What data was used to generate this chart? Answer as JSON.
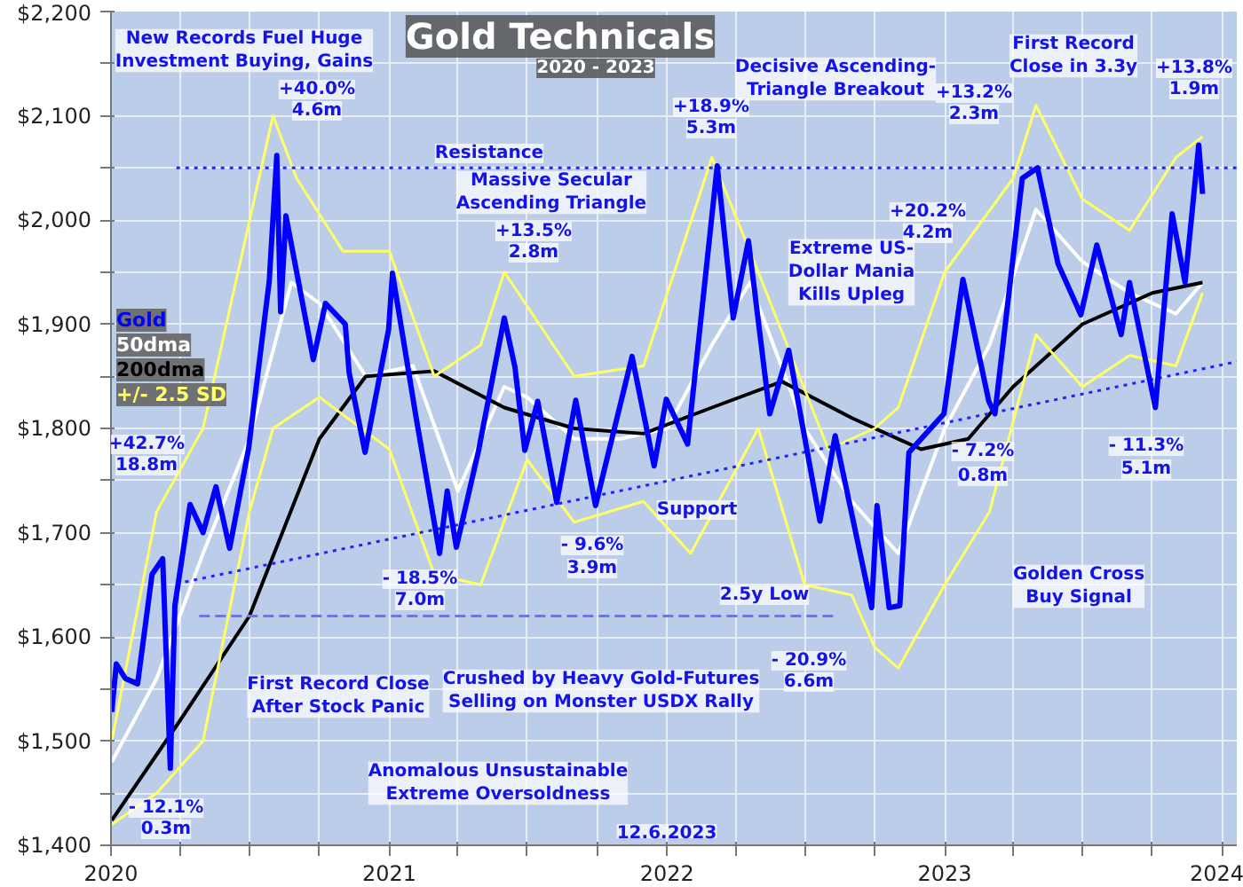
{
  "chart_data": {
    "type": "line",
    "title": "Gold Technicals",
    "subtitle": "2020 - 2023",
    "x": [
      "2020-01-02",
      "2020-01-08",
      "2020-01-20",
      "2020-02-05",
      "2020-02-24",
      "2020-03-09",
      "2020-03-19",
      "2020-03-25",
      "2020-04-14",
      "2020-05-01",
      "2020-05-18",
      "2020-06-05",
      "2020-06-30",
      "2020-07-27",
      "2020-08-06",
      "2020-08-11",
      "2020-08-18",
      "2020-09-23",
      "2020-10-09",
      "2020-11-04",
      "2020-11-09",
      "2020-11-30",
      "2020-12-31",
      "2021-01-05",
      "2021-02-05",
      "2021-03-08",
      "2021-03-18",
      "2021-03-30",
      "2021-04-28",
      "2021-06-01",
      "2021-06-15",
      "2021-06-28",
      "2021-07-15",
      "2021-08-09",
      "2021-09-03",
      "2021-09-29",
      "2021-11-16",
      "2021-12-15",
      "2021-12-31",
      "2022-01-28",
      "2022-03-08",
      "2022-03-29",
      "2022-04-18",
      "2022-05-16",
      "2022-06-10",
      "2022-07-21",
      "2022-08-10",
      "2022-09-27",
      "2022-10-04",
      "2022-10-20",
      "2022-11-03",
      "2022-11-15",
      "2022-12-31",
      "2023-01-25",
      "2023-02-28",
      "2023-03-08",
      "2023-04-13",
      "2023-05-03",
      "2023-05-30",
      "2023-06-29",
      "2023-07-20",
      "2023-08-21",
      "2023-09-01",
      "2023-10-05",
      "2023-10-27",
      "2023-11-13",
      "2023-12-01",
      "2023-12-06"
    ],
    "series": [
      {
        "name": "Gold",
        "color": "#0000ff",
        "values": [
          1528,
          1574,
          1560,
          1555,
          1660,
          1675,
          1474,
          1630,
          1727,
          1700,
          1744,
          1685,
          1781,
          1941,
          2062,
          1912,
          2004,
          1866,
          1920,
          1900,
          1854,
          1777,
          1895,
          1949,
          1811,
          1680,
          1740,
          1686,
          1778,
          1906,
          1859,
          1779,
          1826,
          1729,
          1827,
          1726,
          1869,
          1764,
          1828,
          1785,
          2052,
          1906,
          1980,
          1814,
          1875,
          1711,
          1793,
          1628,
          1726,
          1628,
          1630,
          1777,
          1814,
          1943,
          1826,
          1814,
          2040,
          2050,
          1958,
          1909,
          1976,
          1890,
          1940,
          1820,
          2006,
          1940,
          2072,
          2025
        ]
      },
      {
        "name": "50dma",
        "color": "#ffffff",
        "x": [
          "2020-01-02",
          "2020-03-01",
          "2020-05-01",
          "2020-07-01",
          "2020-08-25",
          "2020-10-01",
          "2020-12-01",
          "2021-02-01",
          "2021-04-01",
          "2021-06-01",
          "2021-07-01",
          "2021-09-01",
          "2021-11-01",
          "2022-01-01",
          "2022-03-01",
          "2022-04-20",
          "2022-07-01",
          "2022-09-01",
          "2022-11-01",
          "2023-01-01",
          "2023-03-01",
          "2023-05-01",
          "2023-07-01",
          "2023-09-01",
          "2023-11-01",
          "2023-12-06"
        ],
        "values": [
          1480,
          1560,
          1680,
          1790,
          1940,
          1920,
          1850,
          1860,
          1740,
          1840,
          1830,
          1790,
          1790,
          1800,
          1880,
          1940,
          1800,
          1730,
          1680,
          1800,
          1880,
          2010,
          1960,
          1930,
          1910,
          1940
        ]
      },
      {
        "name": "200dma",
        "color": "#000000",
        "x": [
          "2020-01-02",
          "2020-04-01",
          "2020-07-01",
          "2020-10-01",
          "2020-12-01",
          "2021-03-01",
          "2021-06-01",
          "2021-09-01",
          "2021-12-01",
          "2022-03-01",
          "2022-06-01",
          "2022-09-01",
          "2022-12-01",
          "2023-02-01",
          "2023-04-01",
          "2023-07-01",
          "2023-10-01",
          "2023-12-06"
        ],
        "values": [
          1424,
          1520,
          1620,
          1790,
          1850,
          1855,
          1820,
          1800,
          1795,
          1820,
          1845,
          1810,
          1780,
          1790,
          1840,
          1900,
          1930,
          1940
        ]
      },
      {
        "name": "+/- 2.5 SD",
        "color": "#ffff66",
        "x": [
          "2020-01-02",
          "2020-03-01",
          "2020-05-01",
          "2020-08-01",
          "2020-09-01",
          "2020-11-01",
          "2021-01-01",
          "2021-03-01",
          "2021-05-01",
          "2021-06-01",
          "2021-09-01",
          "2021-12-01",
          "2022-03-01",
          "2022-05-01",
          "2022-08-01",
          "2022-10-01",
          "2022-11-01",
          "2023-01-01",
          "2023-04-01",
          "2023-05-01",
          "2023-07-01",
          "2023-09-01",
          "2023-11-01",
          "2023-12-06"
        ],
        "values": [
          1500,
          1720,
          1800,
          2100,
          2040,
          1970,
          1970,
          1850,
          1880,
          1950,
          1850,
          1860,
          2060,
          1950,
          1780,
          1800,
          1820,
          1950,
          2040,
          2110,
          2020,
          1990,
          2060,
          2080
        ]
      },
      {
        "color": "#ffff66",
        "x": [
          "2020-01-02",
          "2020-03-01",
          "2020-05-01",
          "2020-07-01",
          "2020-08-01",
          "2020-10-01",
          "2021-01-01",
          "2021-03-01",
          "2021-05-01",
          "2021-07-01",
          "2021-09-01",
          "2021-12-01",
          "2022-02-01",
          "2022-05-01",
          "2022-07-01",
          "2022-09-01",
          "2022-10-01",
          "2022-11-01",
          "2023-01-01",
          "2023-03-01",
          "2023-05-01",
          "2023-07-01",
          "2023-09-01",
          "2023-11-01",
          "2023-12-06"
        ],
        "values": [
          1420,
          1450,
          1500,
          1720,
          1800,
          1830,
          1780,
          1660,
          1650,
          1770,
          1710,
          1730,
          1680,
          1800,
          1650,
          1640,
          1590,
          1570,
          1650,
          1720,
          1890,
          1840,
          1870,
          1860,
          1930
        ]
      },
      {
        "color": "#2222ff",
        "line_style": "dotted",
        "x": [
          "2020-03-27",
          "2024-01-20"
        ],
        "values": [
          2050,
          2050
        ]
      },
      {
        "color": "#2222ff",
        "line_style": "dotted",
        "x": [
          "2020-03-27",
          "2024-01-20"
        ],
        "values": [
          1651,
          1864
        ]
      },
      {
        "color": "#6f6fff",
        "line_style": "dashed",
        "x": [
          "2020-04-26",
          "2022-08-14"
        ],
        "values": [
          1620,
          1620
        ]
      }
    ],
    "xlim": [
      "2020-01-01",
      "2024-01-20"
    ],
    "xticks": [
      {
        "value": "2020-01-01",
        "label": "2020"
      },
      {
        "value": "2020-04-01",
        "label": null
      },
      {
        "value": "2020-07-01",
        "label": null
      },
      {
        "value": "2020-10-01",
        "label": null
      },
      {
        "value": "2021-01-01",
        "label": "2021"
      },
      {
        "value": "2021-04-01",
        "label": null
      },
      {
        "value": "2021-07-01",
        "label": null
      },
      {
        "value": "2021-10-01",
        "label": null
      },
      {
        "value": "2022-01-01",
        "label": "2022"
      },
      {
        "value": "2022-04-01",
        "label": null
      },
      {
        "value": "2022-07-01",
        "label": null
      },
      {
        "value": "2022-10-01",
        "label": null
      },
      {
        "value": "2023-01-01",
        "label": "2023"
      },
      {
        "value": "2023-04-01",
        "label": null
      },
      {
        "value": "2023-07-01",
        "label": null
      },
      {
        "value": "2023-10-01",
        "label": null
      },
      {
        "value": "2024-01-01",
        "label": "2024"
      }
    ],
    "ylim": [
      1400,
      2200
    ],
    "yticks": [
      {
        "value": 1400,
        "label": "$1,400"
      },
      {
        "value": 1450,
        "label": null
      },
      {
        "value": 1500,
        "label": "$1,500"
      },
      {
        "value": 1550,
        "label": null
      },
      {
        "value": 1600,
        "label": "$1,600"
      },
      {
        "value": 1650,
        "label": null
      },
      {
        "value": 1700,
        "label": "$1,700"
      },
      {
        "value": 1750,
        "label": null
      },
      {
        "value": 1800,
        "label": "$1,800"
      },
      {
        "value": 1850,
        "label": null
      },
      {
        "value": 1900,
        "label": "$1,900"
      },
      {
        "value": 1950,
        "label": null
      },
      {
        "value": 2000,
        "label": "$2,000"
      },
      {
        "value": 2050,
        "label": null
      },
      {
        "value": 2100,
        "label": "$2,100"
      },
      {
        "value": 2150,
        "label": null
      },
      {
        "value": 2200,
        "label": "$2,200"
      }
    ],
    "grid": true,
    "legend": "left",
    "annotations": [
      "New Records Fuel Huge\nInvestment Buying, Gains",
      "+40.0%",
      "4.6m",
      "Resistance",
      "Massive Secular\nAscending Triangle",
      "+18.9%",
      "5.3m",
      "Decisive Ascending-\nTriangle Breakout",
      "+13.2%",
      "2.3m",
      "First Record\nClose in 3.3y",
      "+13.8%",
      "1.9m",
      "+13.5%",
      "2.8m",
      "Extreme US-\nDollar Mania\nKills Upleg",
      "+20.2%",
      "4.2m",
      "+42.7%",
      "18.8m",
      "- 18.5%",
      "7.0m",
      "- 9.6%",
      "3.9m",
      "Support",
      "First Record Close\nAfter Stock Panic",
      "Crushed by Heavy Gold-Futures\nSelling on Monster USDX Rally",
      "2.5y Low",
      "- 20.9%",
      "6.6m",
      "Anomalous Unsustainable\nExtreme Oversoldness",
      "- 12.1%",
      "0.3m",
      "- 7.2%",
      "0.8m",
      "- 11.3%",
      "5.1m",
      "Golden Cross\nBuy Signal",
      "12.6.2023"
    ]
  }
}
